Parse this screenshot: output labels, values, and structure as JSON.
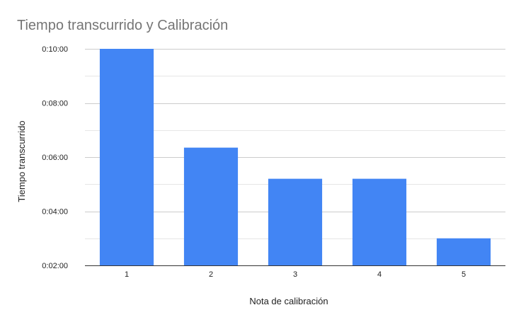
{
  "chart_data": {
    "type": "bar",
    "title": "Tiempo transcurrido y Calibración",
    "xlabel": "Nota de calibración",
    "ylabel": "Tiempo transcurrido",
    "categories": [
      "1",
      "2",
      "3",
      "4",
      "5"
    ],
    "values_seconds": [
      600,
      381,
      312,
      312,
      180
    ],
    "y_tick_labels": [
      "0:02:00",
      "0:04:00",
      "0:06:00",
      "0:08:00",
      "0:10:00"
    ],
    "ylim_seconds": [
      120,
      600
    ],
    "y_major_step_seconds": 120,
    "grid": true,
    "bar_color": "#4285f4",
    "grid_color": "#cccccc",
    "minor_grid_color": "#e6e6e6",
    "title_color": "#757575"
  }
}
